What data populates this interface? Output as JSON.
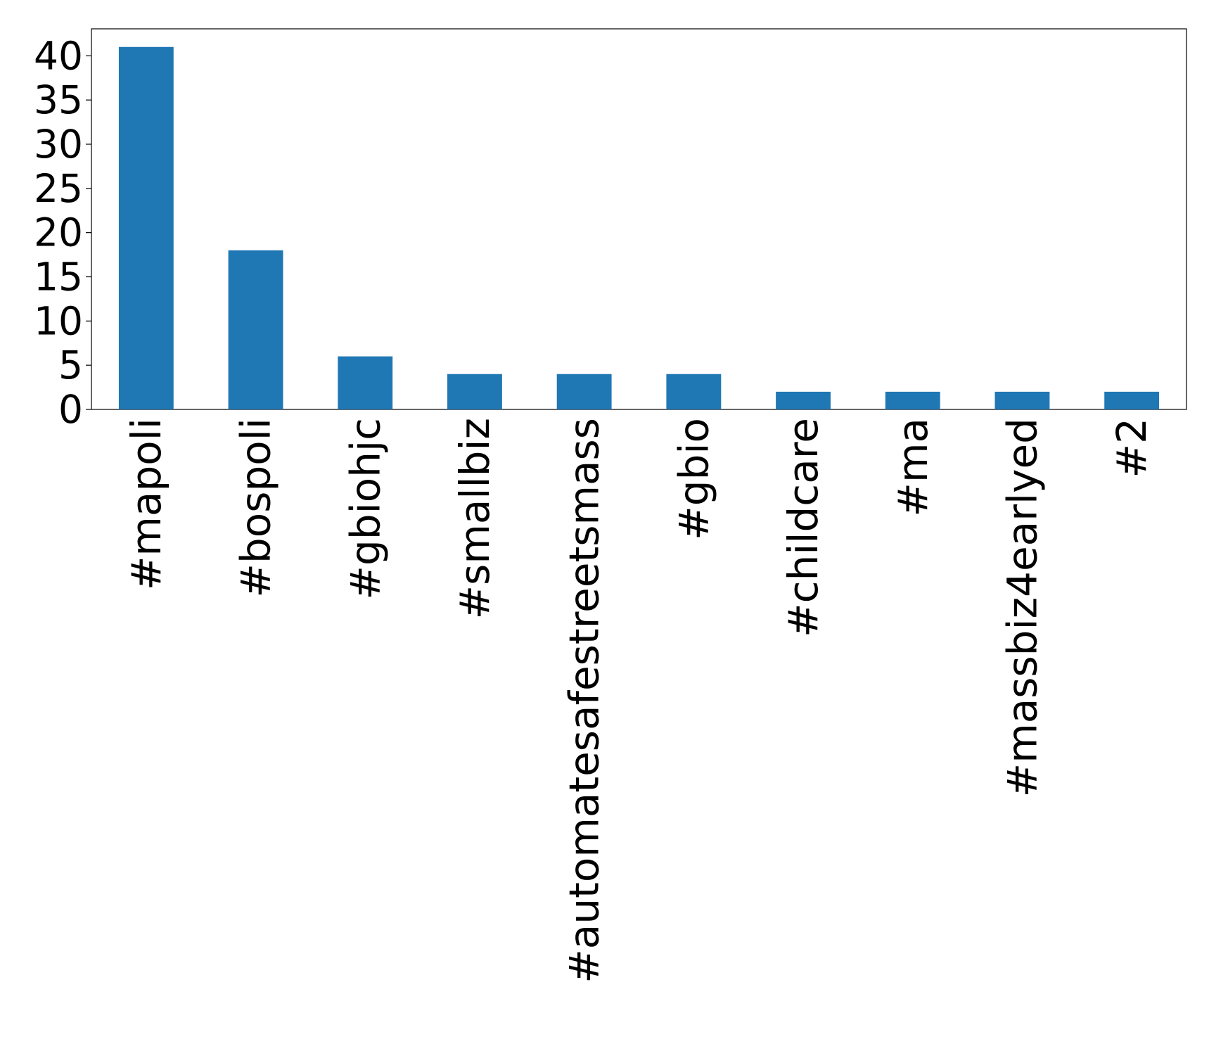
{
  "chart_data": {
    "type": "bar",
    "categories": [
      "#mapoli",
      "#bospoli",
      "#gbiohjc",
      "#smallbiz",
      "#automatesafestreetsmass",
      "#gbio",
      "#childcare",
      "#ma",
      "#massbiz4earlyed",
      "#2"
    ],
    "values": [
      41,
      18,
      6,
      4,
      4,
      4,
      2,
      2,
      2,
      2
    ],
    "color": "#1f77b4",
    "ylim": [
      0,
      43.05
    ],
    "yticks": [
      0,
      5,
      10,
      15,
      20,
      25,
      30,
      35,
      40
    ],
    "grid": false
  }
}
